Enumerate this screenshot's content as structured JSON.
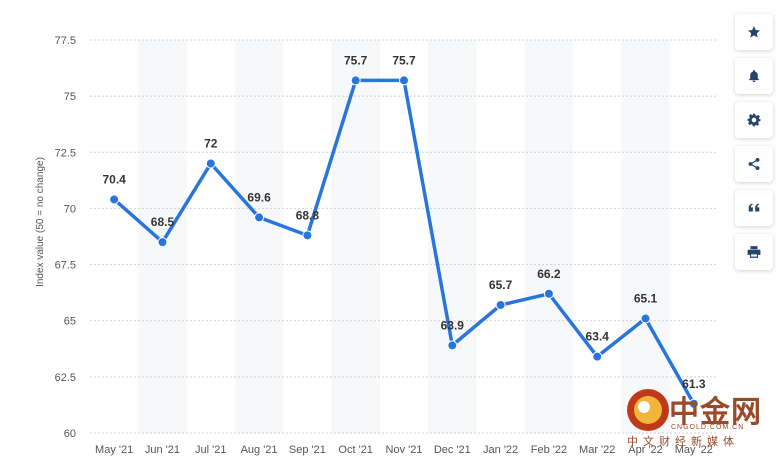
{
  "chart_data": {
    "type": "line",
    "categories": [
      "May '21",
      "Jun '21",
      "Jul '21",
      "Aug '21",
      "Sep '21",
      "Oct '21",
      "Nov '21",
      "Dec '21",
      "Jan '22",
      "Feb '22",
      "Mar '22",
      "Apr '22",
      "May '22"
    ],
    "values": [
      70.4,
      68.5,
      72,
      69.6,
      68.8,
      75.7,
      75.7,
      63.9,
      65.7,
      66.2,
      63.4,
      65.1,
      61.3
    ],
    "data_labels": [
      "70.4",
      "68.5",
      "72",
      "69.6",
      "68.8",
      "75.7",
      "75.7",
      "63.9",
      "65.7",
      "66.2",
      "63.4",
      "65.1",
      "61.3"
    ],
    "ylabel": "Index value (50 = no change)",
    "ylim": [
      60,
      77.5
    ],
    "yticks": [
      60,
      62.5,
      65,
      67.5,
      70,
      72.5,
      75,
      77.5
    ],
    "ytick_labels": [
      "60",
      "62.5",
      "65",
      "67.5",
      "70",
      "72.5",
      "75",
      "77.5"
    ],
    "grid": true,
    "line_color": "#2876dd"
  },
  "toolbar": {
    "buttons": [
      {
        "name": "star-icon"
      },
      {
        "name": "bell-icon"
      },
      {
        "name": "gear-icon"
      },
      {
        "name": "share-icon"
      },
      {
        "name": "quote-icon"
      },
      {
        "name": "print-icon"
      }
    ]
  },
  "watermark": {
    "main": "中金网",
    "url": "CNGOLD.COM.CN",
    "sub": "中文财经新媒体"
  }
}
